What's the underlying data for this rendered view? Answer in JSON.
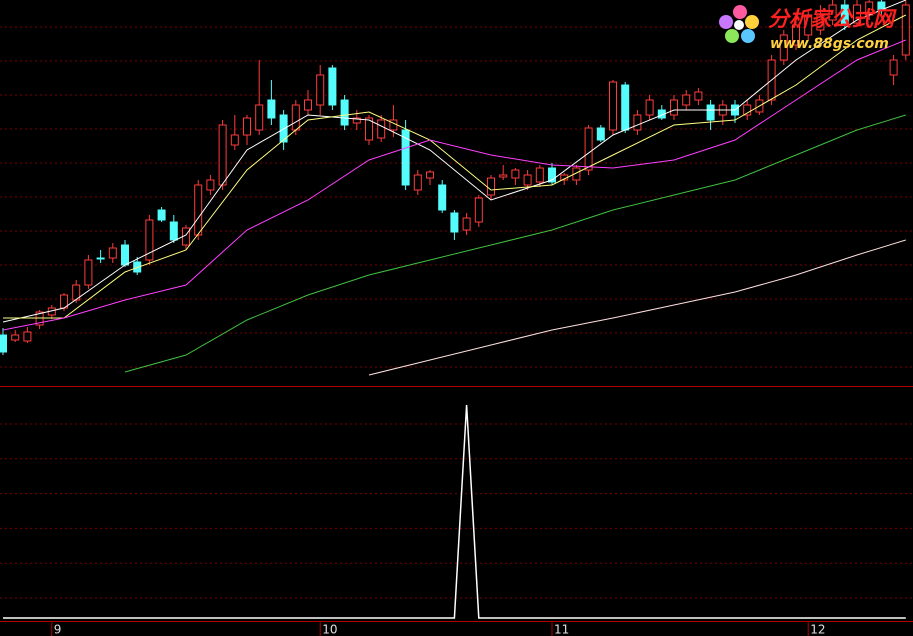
{
  "chart_data": {
    "type": "candlestick",
    "categories": [
      null,
      null,
      null,
      null,
      "9",
      null,
      null,
      null,
      null,
      null,
      null,
      null,
      null,
      null,
      null,
      null,
      null,
      null,
      null,
      null,
      null,
      null,
      null,
      null,
      null,
      null,
      "10",
      null,
      null,
      null,
      null,
      null,
      null,
      null,
      null,
      null,
      null,
      null,
      null,
      null,
      null,
      null,
      null,
      null,
      null,
      "11",
      null,
      null,
      null,
      null,
      null,
      null,
      null,
      null,
      null,
      null,
      null,
      null,
      null,
      null,
      null,
      null,
      null,
      null,
      null,
      null,
      "12",
      null,
      null,
      null,
      null,
      null,
      null,
      null,
      null
    ],
    "ohlc": [
      [
        50,
        57,
        30,
        33
      ],
      [
        45,
        55,
        43,
        50
      ],
      [
        44,
        58,
        42,
        53
      ],
      [
        60,
        75,
        56,
        73
      ],
      [
        70,
        80,
        66,
        77
      ],
      [
        77,
        92,
        74,
        90
      ],
      [
        85,
        105,
        82,
        100
      ],
      [
        100,
        130,
        96,
        125
      ],
      [
        127,
        135,
        122,
        126
      ],
      [
        127,
        142,
        122,
        137
      ],
      [
        140,
        145,
        118,
        120
      ],
      [
        123,
        128,
        110,
        113
      ],
      [
        125,
        170,
        120,
        165
      ],
      [
        175,
        178,
        163,
        165
      ],
      [
        163,
        170,
        142,
        145
      ],
      [
        140,
        160,
        135,
        157
      ],
      [
        150,
        205,
        145,
        200
      ],
      [
        195,
        210,
        190,
        205
      ],
      [
        200,
        265,
        195,
        260
      ],
      [
        240,
        270,
        235,
        250
      ],
      [
        250,
        270,
        240,
        267
      ],
      [
        255,
        325,
        250,
        280
      ],
      [
        285,
        305,
        260,
        267
      ],
      [
        270,
        275,
        235,
        243
      ],
      [
        255,
        285,
        250,
        280
      ],
      [
        275,
        295,
        270,
        285
      ],
      [
        280,
        320,
        270,
        310
      ],
      [
        317,
        320,
        275,
        280
      ],
      [
        285,
        290,
        255,
        260
      ],
      [
        262,
        275,
        255,
        267
      ],
      [
        245,
        270,
        240,
        267
      ],
      [
        247,
        270,
        243,
        265
      ],
      [
        255,
        280,
        248,
        265
      ],
      [
        255,
        265,
        195,
        200
      ],
      [
        195,
        215,
        190,
        210
      ],
      [
        207,
        215,
        200,
        213
      ],
      [
        200,
        205,
        172,
        175
      ],
      [
        172,
        175,
        145,
        153
      ],
      [
        155,
        172,
        150,
        167
      ],
      [
        163,
        190,
        158,
        187
      ],
      [
        190,
        210,
        185,
        207
      ],
      [
        208,
        220,
        205,
        210
      ],
      [
        207,
        217,
        200,
        215
      ],
      [
        200,
        215,
        195,
        210
      ],
      [
        203,
        220,
        198,
        217
      ],
      [
        217,
        222,
        200,
        203
      ],
      [
        205,
        212,
        200,
        210
      ],
      [
        205,
        220,
        200,
        217
      ],
      [
        215,
        260,
        210,
        257
      ],
      [
        257,
        260,
        243,
        245
      ],
      [
        255,
        305,
        250,
        303
      ],
      [
        300,
        303,
        252,
        255
      ],
      [
        255,
        275,
        250,
        270
      ],
      [
        270,
        290,
        265,
        285
      ],
      [
        275,
        280,
        265,
        267
      ],
      [
        270,
        290,
        265,
        285
      ],
      [
        280,
        295,
        275,
        290
      ],
      [
        285,
        297,
        280,
        293
      ],
      [
        280,
        285,
        255,
        265
      ],
      [
        270,
        285,
        260,
        280
      ],
      [
        280,
        285,
        262,
        270
      ],
      [
        270,
        285,
        265,
        280
      ],
      [
        273,
        290,
        270,
        285
      ],
      [
        285,
        330,
        280,
        325
      ],
      [
        325,
        355,
        320,
        350
      ],
      [
        340,
        365,
        335,
        360
      ],
      [
        350,
        375,
        345,
        370
      ],
      [
        355,
        380,
        350,
        370
      ],
      [
        365,
        385,
        360,
        380
      ],
      [
        380,
        385,
        355,
        360
      ],
      [
        362,
        385,
        358,
        380
      ],
      [
        370,
        385,
        365,
        383
      ],
      [
        383,
        385,
        370,
        375
      ],
      [
        310,
        330,
        300,
        325
      ],
      [
        330,
        385,
        325,
        380
      ]
    ],
    "up_color": "#ff3c3c",
    "down_color": "#54fcfc",
    "ylim": [
      0,
      385
    ],
    "series": [
      {
        "color": "#ffffff",
        "x": [
          0,
          5,
          10,
          15,
          20,
          25,
          30,
          35,
          40,
          45,
          50,
          55,
          60,
          65,
          70,
          74
        ],
        "values": [
          63,
          77,
          120,
          150,
          235,
          270,
          265,
          235,
          185,
          205,
          250,
          275,
          275,
          325,
          365,
          385
        ]
      },
      {
        "color": "#ffff80",
        "x": [
          0,
          5,
          10,
          15,
          20,
          25,
          30,
          35,
          40,
          45,
          50,
          55,
          60,
          65,
          70,
          74
        ],
        "values": [
          67,
          67,
          113,
          135,
          215,
          265,
          273,
          245,
          195,
          200,
          230,
          260,
          265,
          300,
          345,
          370
        ]
      },
      {
        "color": "#ff40ff",
        "x": [
          0,
          5,
          10,
          15,
          20,
          25,
          30,
          35,
          40,
          45,
          50,
          55,
          60,
          65,
          70,
          74
        ],
        "values": [
          55,
          67,
          85,
          100,
          155,
          185,
          225,
          245,
          230,
          220,
          217,
          225,
          245,
          285,
          325,
          345
        ]
      },
      {
        "color": "#40c040",
        "x": [
          10,
          15,
          20,
          25,
          30,
          35,
          40,
          45,
          50,
          55,
          60,
          65,
          70,
          74
        ],
        "values": [
          13,
          30,
          65,
          90,
          110,
          125,
          140,
          155,
          175,
          190,
          205,
          230,
          255,
          270
        ]
      },
      {
        "color": "#ffe0e0",
        "x": [
          30,
          35,
          40,
          45,
          50,
          55,
          60,
          65,
          70,
          74
        ],
        "values": [
          10,
          25,
          40,
          55,
          67,
          80,
          93,
          110,
          130,
          145
        ]
      }
    ],
    "indicator": {
      "color": "#ffffff",
      "ylim": [
        0,
        1
      ],
      "values": [
        0,
        0,
        0,
        0,
        0,
        0,
        0,
        0,
        0,
        0,
        0,
        0,
        0,
        0,
        0,
        0,
        0,
        0,
        0,
        0,
        0,
        0,
        0,
        0,
        0,
        0,
        0,
        0,
        0,
        0,
        0,
        0,
        0,
        0,
        0,
        0,
        0,
        0,
        1,
        0,
        0,
        0,
        0,
        0,
        0,
        0,
        0,
        0,
        0,
        0,
        0,
        0,
        0,
        0,
        0,
        0,
        0,
        0,
        0,
        0,
        0,
        0,
        0,
        0,
        0,
        0,
        0,
        0,
        0,
        0,
        0,
        0,
        0,
        0,
        0
      ]
    },
    "grid": true
  },
  "watermark": {
    "title": "分析家公式网",
    "url": "www.88gs.com"
  }
}
